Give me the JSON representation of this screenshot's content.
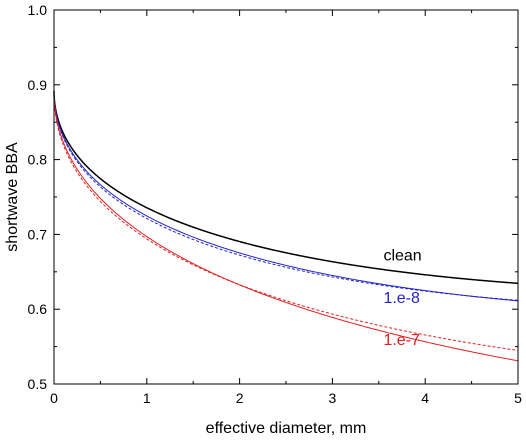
{
  "chart_data": {
    "type": "line",
    "xlabel": "effective diameter, mm",
    "ylabel": "shortwave BBA",
    "xlim": [
      0,
      5
    ],
    "ylim": [
      0.5,
      1.0
    ],
    "x_ticks": [
      0,
      1,
      2,
      3,
      4,
      5
    ],
    "y_ticks": [
      0.5,
      0.6,
      0.7,
      0.8,
      0.9,
      1.0
    ],
    "grid": false,
    "series": [
      {
        "name": "clean",
        "color": "#000000",
        "style": "solid",
        "curve": "fit",
        "points": [
          [
            0.0,
            0.9
          ],
          [
            0.1,
            0.829
          ],
          [
            0.5,
            0.766
          ],
          [
            1.0,
            0.733
          ],
          [
            2.0,
            0.698
          ],
          [
            3.0,
            0.671
          ],
          [
            4.0,
            0.648
          ],
          [
            5.0,
            0.627
          ]
        ]
      },
      {
        "name": "1.e-8",
        "color": "#2323c8",
        "style": "solid",
        "curve": "fit",
        "points": [
          [
            0.0,
            0.9
          ],
          [
            0.1,
            0.824
          ],
          [
            0.5,
            0.757
          ],
          [
            1.0,
            0.723
          ],
          [
            2.0,
            0.684
          ],
          [
            3.0,
            0.652
          ],
          [
            4.0,
            0.626
          ],
          [
            5.0,
            0.604
          ]
        ]
      },
      {
        "name": "1.e-8",
        "color": "#2323c8",
        "style": "dashed",
        "curve": "fit",
        "points": [
          [
            0.0,
            0.9
          ],
          [
            0.1,
            0.822
          ],
          [
            0.5,
            0.754
          ],
          [
            1.0,
            0.72
          ],
          [
            2.0,
            0.681
          ],
          [
            3.0,
            0.65
          ],
          [
            4.0,
            0.625
          ],
          [
            5.0,
            0.605
          ]
        ]
      },
      {
        "name": "1.e-7",
        "color": "#e02020",
        "style": "solid",
        "curve": "fit",
        "points": [
          [
            0.0,
            0.9
          ],
          [
            0.1,
            0.815
          ],
          [
            0.5,
            0.738
          ],
          [
            1.0,
            0.696
          ],
          [
            2.0,
            0.641
          ],
          [
            3.0,
            0.597
          ],
          [
            4.0,
            0.558
          ],
          [
            5.0,
            0.523
          ]
        ]
      },
      {
        "name": "1.e-7",
        "color": "#e02020",
        "style": "dashed",
        "curve": "fit",
        "points": [
          [
            0.0,
            0.9
          ],
          [
            0.1,
            0.81
          ],
          [
            0.5,
            0.732
          ],
          [
            1.0,
            0.693
          ],
          [
            2.0,
            0.642
          ],
          [
            3.0,
            0.603
          ],
          [
            4.0,
            0.568
          ],
          [
            5.0,
            0.535
          ]
        ]
      }
    ],
    "labels": [
      {
        "text": "clean",
        "color": "#000000",
        "x": 3.55,
        "y": 0.665
      },
      {
        "text": "1.e-8",
        "color": "#2323c8",
        "x": 3.55,
        "y": 0.608
      },
      {
        "text": "1.e-7",
        "color": "#e02020",
        "x": 3.55,
        "y": 0.552
      }
    ]
  }
}
